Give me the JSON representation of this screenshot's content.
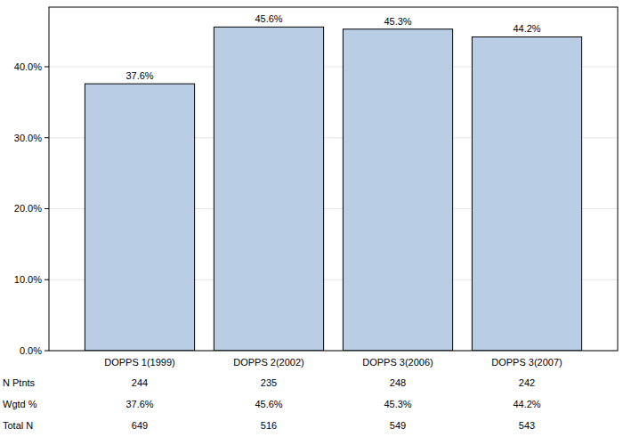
{
  "chart_data": {
    "type": "bar",
    "categories": [
      "DOPPS 1(1999)",
      "DOPPS 2(2002)",
      "DOPPS 3(2006)",
      "DOPPS 3(2007)"
    ],
    "values": [
      37.6,
      45.6,
      45.3,
      44.2
    ],
    "value_labels": [
      "37.6%",
      "45.6%",
      "45.3%",
      "44.2%"
    ],
    "color": "#b9cde5",
    "data_labels": true,
    "grid": true,
    "ylim": [
      0,
      48.4
    ],
    "yticks": [
      {
        "value": 0,
        "label": "0.0%"
      },
      {
        "value": 10,
        "label": "10.0%"
      },
      {
        "value": 20,
        "label": "20.0%"
      },
      {
        "value": 30,
        "label": "30.0%"
      },
      {
        "value": 40,
        "label": "40.0%"
      }
    ],
    "table": {
      "rows": [
        {
          "label": "N Ptnts",
          "values": [
            244,
            235,
            248,
            242
          ]
        },
        {
          "label": "Wgtd %",
          "values": [
            37.6,
            45.6,
            45.3,
            44.2
          ],
          "value_labels": [
            "37.6%",
            "45.6%",
            "45.3%",
            "44.2%"
          ]
        },
        {
          "label": "Total N",
          "values": [
            649,
            516,
            549,
            543
          ]
        }
      ]
    }
  }
}
